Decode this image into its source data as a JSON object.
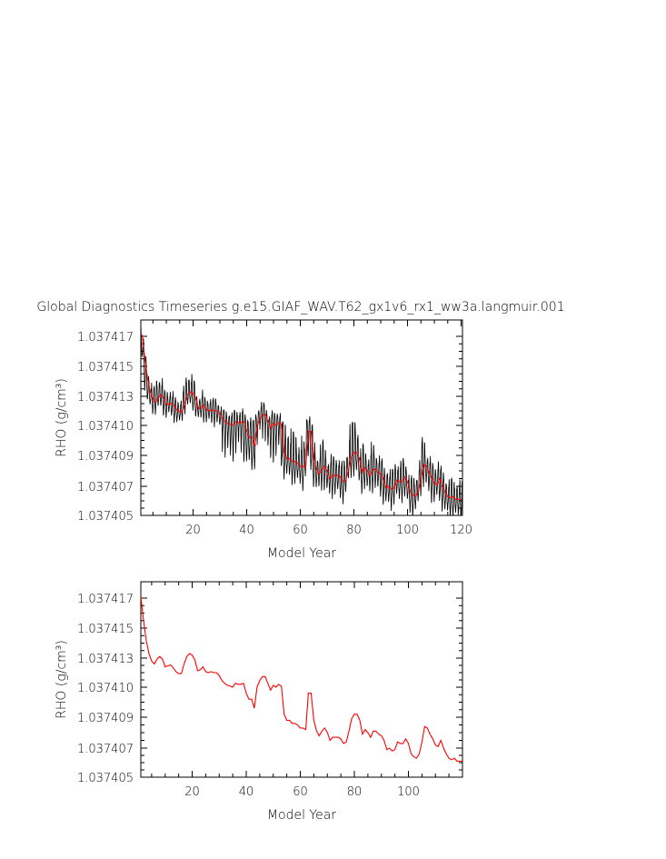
{
  "title": "Global Diagnostics Timeseries g.e15.GIAF_WAV.T62_gx1v6_rx1_ww3a.langmuir.001",
  "colors": {
    "monthly": "#000000",
    "annual": "#ff0000"
  },
  "chart_data": [
    {
      "type": "line",
      "xlabel": "Model Year",
      "ylabel": "RHO (g/cm³)",
      "xlim": [
        0.5,
        120.5
      ],
      "ylim": [
        1.037405,
        1.037418
      ],
      "x_ticks": [
        20,
        40,
        60,
        80,
        100,
        120
      ],
      "y_ticks": [
        "1.037405",
        "1.037407",
        "1.037409",
        "1.037410",
        "1.037413",
        "1.037415",
        "1.037417"
      ],
      "grid": false,
      "series": [
        {
          "style": "monthly",
          "color": "#000000",
          "seasonal_amplitude": 1.1e-06,
          "values_ref": "chart_data.1.series.0"
        },
        {
          "style": "annual",
          "color": "#ff0000",
          "values_ref": "chart_data.1.series.0"
        }
      ]
    },
    {
      "type": "line",
      "xlabel": "Model Year",
      "ylabel": "RHO (g/cm³)",
      "xlim": [
        1,
        120
      ],
      "ylim": [
        1.037405,
        1.037418
      ],
      "x_ticks": [
        20,
        40,
        60,
        80,
        100
      ],
      "y_ticks": [
        "1.037405",
        "1.037407",
        "1.037409",
        "1.037410",
        "1.037413",
        "1.037415",
        "1.037417"
      ],
      "grid": false,
      "series": [
        {
          "color": "#ff0000",
          "x": [
            1,
            2,
            3,
            4,
            5,
            6,
            7,
            8,
            9,
            10,
            11,
            12,
            13,
            14,
            15,
            16,
            17,
            18,
            19,
            20,
            21,
            22,
            23,
            24,
            25,
            26,
            27,
            28,
            29,
            30,
            31,
            32,
            33,
            34,
            35,
            36,
            37,
            38,
            39,
            40,
            41,
            42,
            43,
            44,
            45,
            46,
            47,
            48,
            49,
            50,
            51,
            52,
            53,
            54,
            55,
            56,
            57,
            58,
            59,
            60,
            61,
            62,
            63,
            64,
            65,
            66,
            67,
            68,
            69,
            70,
            71,
            72,
            73,
            74,
            75,
            76,
            77,
            78,
            79,
            80,
            81,
            82,
            83,
            84,
            85,
            86,
            87,
            88,
            89,
            90,
            91,
            92,
            93,
            94,
            95,
            96,
            97,
            98,
            99,
            100,
            101,
            102,
            103,
            104,
            105,
            106,
            107,
            108,
            109,
            110,
            111,
            112,
            113,
            114,
            115,
            116,
            117,
            118,
            119,
            120
          ],
          "values": [
            1.0374171,
            1.0374155,
            1.0374142,
            1.0374133,
            1.0374127,
            1.0374124,
            1.0374129,
            1.0374131,
            1.0374129,
            1.0374121,
            1.0374122,
            1.0374123,
            1.037412,
            1.0374116,
            1.0374114,
            1.0374114,
            1.0374124,
            1.0374131,
            1.0374133,
            1.0374132,
            1.0374128,
            1.0374117,
            1.0374118,
            1.0374121,
            1.0374116,
            1.0374115,
            1.0374116,
            1.0374115,
            1.0374115,
            1.0374112,
            1.0374107,
            1.0374104,
            1.0374102,
            1.0374101,
            1.03741,
            1.0374104,
            1.0374103,
            1.0374103,
            1.0374104,
            1.0374098,
            1.0374096,
            1.0374096,
            1.0374093,
            1.03741,
            1.0374107,
            1.0374111,
            1.0374111,
            1.0374104,
            1.0374099,
            1.0374102,
            1.03741,
            1.0374103,
            1.0374101,
            1.0374091,
            1.0374088,
            1.0374088,
            1.0374086,
            1.0374086,
            1.0374085,
            1.0374083,
            1.0374083,
            1.0374082,
            1.0374098,
            1.0374098,
            1.0374088,
            1.0374081,
            1.0374078,
            1.0374081,
            1.0374083,
            1.037408,
            1.0374075,
            1.0374077,
            1.0374077,
            1.0374077,
            1.0374076,
            1.0374073,
            1.0374074,
            1.0374081,
            1.0374089,
            1.0374091,
            1.0374091,
            1.0374088,
            1.0374079,
            1.0374082,
            1.037408,
            1.0374077,
            1.0374081,
            1.0374081,
            1.0374079,
            1.0374078,
            1.0374075,
            1.0374069,
            1.037407,
            1.0374068,
            1.0374069,
            1.0374074,
            1.0374073,
            1.0374073,
            1.0374076,
            1.0374073,
            1.0374066,
            1.0374064,
            1.0374063,
            1.0374066,
            1.0374074,
            1.0374084,
            1.0374083,
            1.0374079,
            1.0374076,
            1.0374072,
            1.0374071,
            1.0374075,
            1.037407,
            1.0374066,
            1.0374063,
            1.0374062,
            1.0374063,
            1.0374061,
            1.0374061,
            1.0374061
          ]
        }
      ]
    }
  ]
}
